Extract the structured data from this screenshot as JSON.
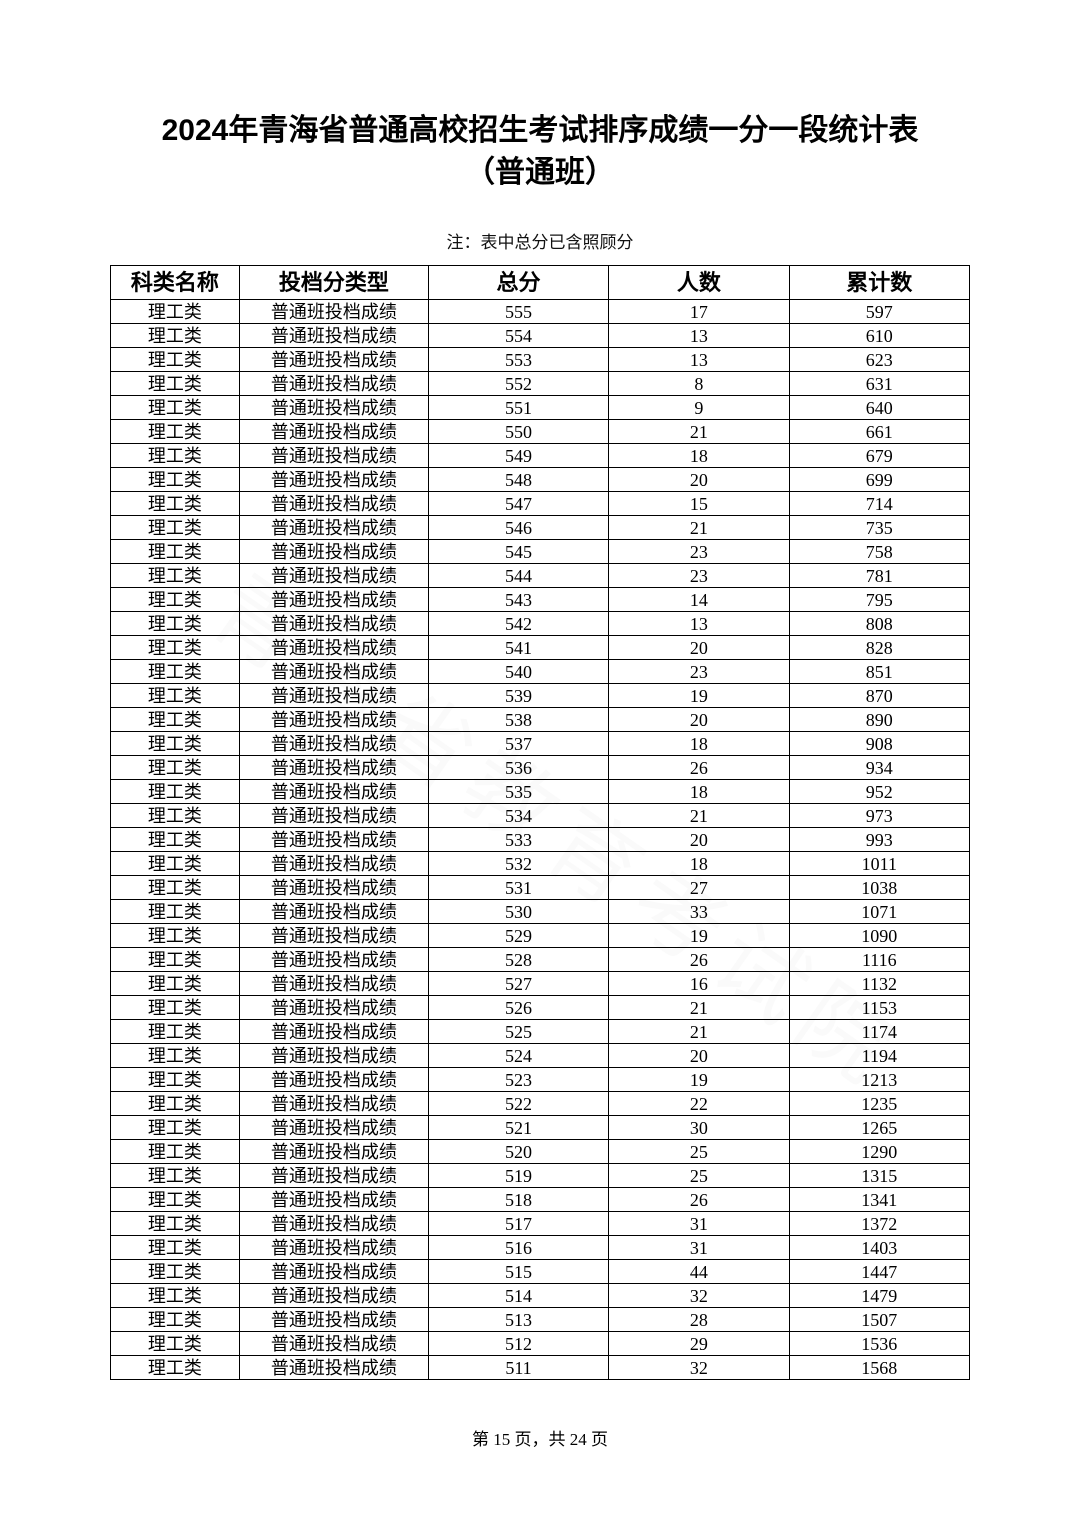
{
  "title_line1": "2024年青海省普通高校招生考试排序成绩一分一段统计表",
  "title_line2": "（普通班）",
  "note": "注：表中总分已含照顾分",
  "columns": [
    "科类名称",
    "投档分类型",
    "总分",
    "人数",
    "累计数"
  ],
  "category": "理工类",
  "score_type": "普通班投档成绩",
  "rows": [
    {
      "score": 555,
      "count": 17,
      "cum": 597
    },
    {
      "score": 554,
      "count": 13,
      "cum": 610
    },
    {
      "score": 553,
      "count": 13,
      "cum": 623
    },
    {
      "score": 552,
      "count": 8,
      "cum": 631
    },
    {
      "score": 551,
      "count": 9,
      "cum": 640
    },
    {
      "score": 550,
      "count": 21,
      "cum": 661
    },
    {
      "score": 549,
      "count": 18,
      "cum": 679
    },
    {
      "score": 548,
      "count": 20,
      "cum": 699
    },
    {
      "score": 547,
      "count": 15,
      "cum": 714
    },
    {
      "score": 546,
      "count": 21,
      "cum": 735
    },
    {
      "score": 545,
      "count": 23,
      "cum": 758
    },
    {
      "score": 544,
      "count": 23,
      "cum": 781
    },
    {
      "score": 543,
      "count": 14,
      "cum": 795
    },
    {
      "score": 542,
      "count": 13,
      "cum": 808
    },
    {
      "score": 541,
      "count": 20,
      "cum": 828
    },
    {
      "score": 540,
      "count": 23,
      "cum": 851
    },
    {
      "score": 539,
      "count": 19,
      "cum": 870
    },
    {
      "score": 538,
      "count": 20,
      "cum": 890
    },
    {
      "score": 537,
      "count": 18,
      "cum": 908
    },
    {
      "score": 536,
      "count": 26,
      "cum": 934
    },
    {
      "score": 535,
      "count": 18,
      "cum": 952
    },
    {
      "score": 534,
      "count": 21,
      "cum": 973
    },
    {
      "score": 533,
      "count": 20,
      "cum": 993
    },
    {
      "score": 532,
      "count": 18,
      "cum": 1011
    },
    {
      "score": 531,
      "count": 27,
      "cum": 1038
    },
    {
      "score": 530,
      "count": 33,
      "cum": 1071
    },
    {
      "score": 529,
      "count": 19,
      "cum": 1090
    },
    {
      "score": 528,
      "count": 26,
      "cum": 1116
    },
    {
      "score": 527,
      "count": 16,
      "cum": 1132
    },
    {
      "score": 526,
      "count": 21,
      "cum": 1153
    },
    {
      "score": 525,
      "count": 21,
      "cum": 1174
    },
    {
      "score": 524,
      "count": 20,
      "cum": 1194
    },
    {
      "score": 523,
      "count": 19,
      "cum": 1213
    },
    {
      "score": 522,
      "count": 22,
      "cum": 1235
    },
    {
      "score": 521,
      "count": 30,
      "cum": 1265
    },
    {
      "score": 520,
      "count": 25,
      "cum": 1290
    },
    {
      "score": 519,
      "count": 25,
      "cum": 1315
    },
    {
      "score": 518,
      "count": 26,
      "cum": 1341
    },
    {
      "score": 517,
      "count": 31,
      "cum": 1372
    },
    {
      "score": 516,
      "count": 31,
      "cum": 1403
    },
    {
      "score": 515,
      "count": 44,
      "cum": 1447
    },
    {
      "score": 514,
      "count": 32,
      "cum": 1479
    },
    {
      "score": 513,
      "count": 28,
      "cum": 1507
    },
    {
      "score": 512,
      "count": 29,
      "cum": 1536
    },
    {
      "score": 511,
      "count": 32,
      "cum": 1568
    }
  ],
  "page_info": "第 15 页，共 24 页",
  "watermark": "青海省教育考试院"
}
